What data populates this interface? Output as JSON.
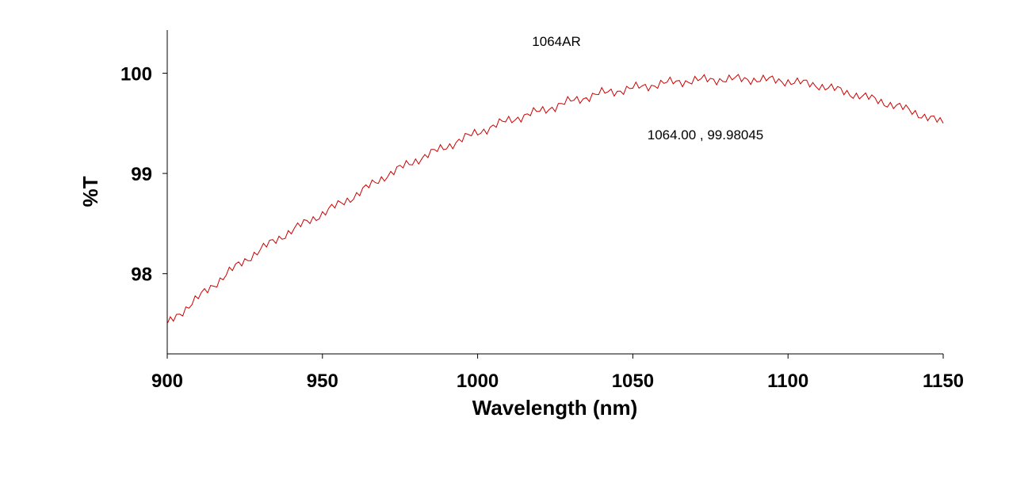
{
  "chart_data": {
    "type": "line",
    "title": "1064AR",
    "xlabel": "Wavelength (nm)",
    "ylabel": "%T",
    "xlim": [
      900,
      1150
    ],
    "ylim": [
      97.2,
      100.43
    ],
    "xticks": [
      "900",
      "950",
      "1000",
      "1050",
      "1100",
      "1150"
    ],
    "yticks": [
      "98",
      "99",
      "100"
    ],
    "grid": false,
    "annotation": "1064.00 , 99.98045",
    "series": [
      {
        "color": "#cc0000",
        "x": [
          900,
          910,
          920,
          930,
          940,
          950,
          960,
          970,
          980,
          990,
          1000,
          1010,
          1020,
          1030,
          1040,
          1050,
          1060,
          1070,
          1080,
          1090,
          1100,
          1110,
          1120,
          1130,
          1140,
          1150
        ],
        "y": [
          97.5,
          97.76,
          98.02,
          98.24,
          98.43,
          98.6,
          98.77,
          98.97,
          99.13,
          99.27,
          99.41,
          99.53,
          99.62,
          99.72,
          99.8,
          99.85,
          99.9,
          99.93,
          99.94,
          99.94,
          99.92,
          99.88,
          99.8,
          99.72,
          99.62,
          99.5
        ]
      }
    ]
  }
}
